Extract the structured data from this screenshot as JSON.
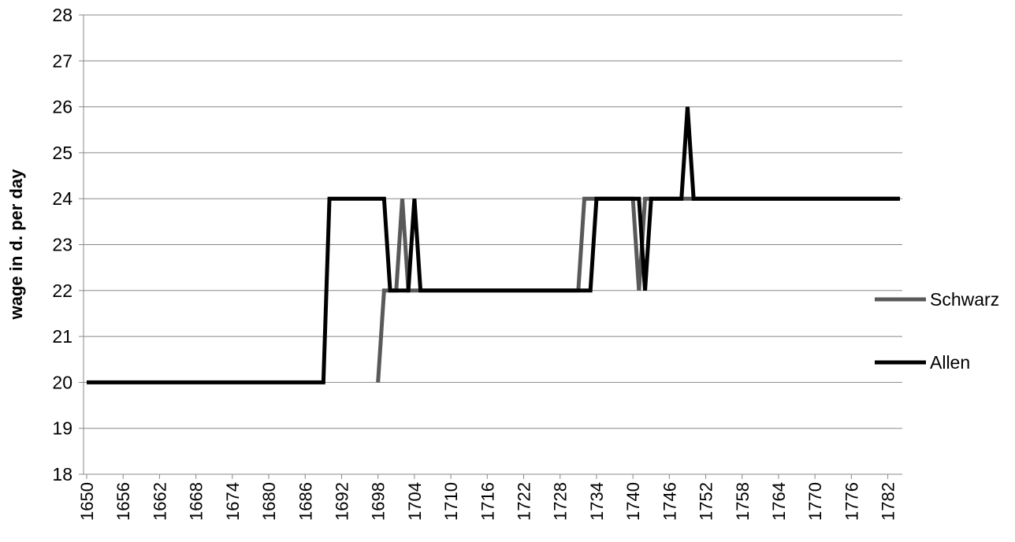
{
  "chart_data": {
    "type": "line",
    "y_label": "wage in d. per day",
    "x": [
      1650,
      1651,
      1652,
      1653,
      1654,
      1655,
      1656,
      1657,
      1658,
      1659,
      1660,
      1661,
      1662,
      1663,
      1664,
      1665,
      1666,
      1667,
      1668,
      1669,
      1670,
      1671,
      1672,
      1673,
      1674,
      1675,
      1676,
      1677,
      1678,
      1679,
      1680,
      1681,
      1682,
      1683,
      1684,
      1685,
      1686,
      1687,
      1688,
      1689,
      1690,
      1691,
      1692,
      1693,
      1694,
      1695,
      1696,
      1697,
      1698,
      1699,
      1700,
      1701,
      1702,
      1703,
      1704,
      1705,
      1706,
      1707,
      1708,
      1709,
      1710,
      1711,
      1712,
      1713,
      1714,
      1715,
      1716,
      1717,
      1718,
      1719,
      1720,
      1721,
      1722,
      1723,
      1724,
      1725,
      1726,
      1727,
      1728,
      1729,
      1730,
      1731,
      1732,
      1733,
      1734,
      1735,
      1736,
      1737,
      1738,
      1739,
      1740,
      1741,
      1742,
      1743,
      1744,
      1745,
      1746,
      1747,
      1748,
      1749,
      1750,
      1751,
      1752,
      1753,
      1754,
      1755,
      1756,
      1757,
      1758,
      1759,
      1760,
      1761,
      1762,
      1763,
      1764,
      1765,
      1766,
      1767,
      1768,
      1769,
      1770,
      1771,
      1772,
      1773,
      1774,
      1775,
      1776,
      1777,
      1778,
      1779,
      1780,
      1781,
      1782,
      1783,
      1784
    ],
    "series": [
      {
        "name": "Schwarz",
        "color": "#595959",
        "values": [
          null,
          null,
          null,
          null,
          null,
          null,
          null,
          null,
          null,
          null,
          null,
          null,
          null,
          null,
          null,
          null,
          null,
          null,
          null,
          null,
          null,
          null,
          null,
          null,
          null,
          null,
          null,
          null,
          null,
          null,
          null,
          null,
          null,
          null,
          null,
          null,
          null,
          null,
          null,
          null,
          null,
          null,
          null,
          null,
          null,
          null,
          null,
          null,
          20,
          22,
          22,
          22,
          24,
          22,
          22,
          22,
          22,
          22,
          22,
          22,
          22,
          22,
          22,
          22,
          22,
          22,
          22,
          22,
          22,
          22,
          22,
          22,
          22,
          22,
          22,
          22,
          22,
          22,
          22,
          22,
          22,
          22,
          24,
          24,
          24,
          24,
          24,
          24,
          24,
          24,
          24,
          22,
          24,
          24,
          24,
          24,
          24,
          24,
          24,
          24,
          24,
          24,
          24,
          24,
          24,
          24,
          24,
          24,
          24,
          24,
          24,
          24,
          24,
          24,
          24,
          24,
          24,
          24,
          24,
          24,
          24,
          24,
          24,
          24,
          24,
          24,
          24,
          24,
          24,
          24,
          24,
          24,
          24,
          24,
          24
        ]
      },
      {
        "name": "Allen",
        "color": "#000000",
        "values": [
          20,
          20,
          20,
          20,
          20,
          20,
          20,
          20,
          20,
          20,
          20,
          20,
          20,
          20,
          20,
          20,
          20,
          20,
          20,
          20,
          20,
          20,
          20,
          20,
          20,
          20,
          20,
          20,
          20,
          20,
          20,
          20,
          20,
          20,
          20,
          20,
          20,
          20,
          20,
          20,
          24,
          24,
          24,
          24,
          24,
          24,
          24,
          24,
          24,
          24,
          22,
          22,
          22,
          22,
          24,
          22,
          22,
          22,
          22,
          22,
          22,
          22,
          22,
          22,
          22,
          22,
          22,
          22,
          22,
          22,
          22,
          22,
          22,
          22,
          22,
          22,
          22,
          22,
          22,
          22,
          22,
          22,
          22,
          22,
          24,
          24,
          24,
          24,
          24,
          24,
          24,
          24,
          22,
          24,
          24,
          24,
          24,
          24,
          24,
          26,
          24,
          24,
          24,
          24,
          24,
          24,
          24,
          24,
          24,
          24,
          24,
          24,
          24,
          24,
          24,
          24,
          24,
          24,
          24,
          24,
          24,
          24,
          24,
          24,
          24,
          24,
          24,
          24,
          24,
          24,
          24,
          24,
          24,
          24,
          24
        ]
      }
    ],
    "xlim": [
      1650,
      1784
    ],
    "xticks": [
      1650,
      1656,
      1662,
      1668,
      1674,
      1680,
      1686,
      1692,
      1698,
      1704,
      1710,
      1716,
      1722,
      1728,
      1734,
      1740,
      1746,
      1752,
      1758,
      1764,
      1770,
      1776,
      1782
    ],
    "ylim": [
      18,
      28
    ],
    "yticks": [
      18,
      19,
      20,
      21,
      22,
      23,
      24,
      25,
      26,
      27,
      28
    ],
    "grid": true,
    "legend": "right"
  }
}
